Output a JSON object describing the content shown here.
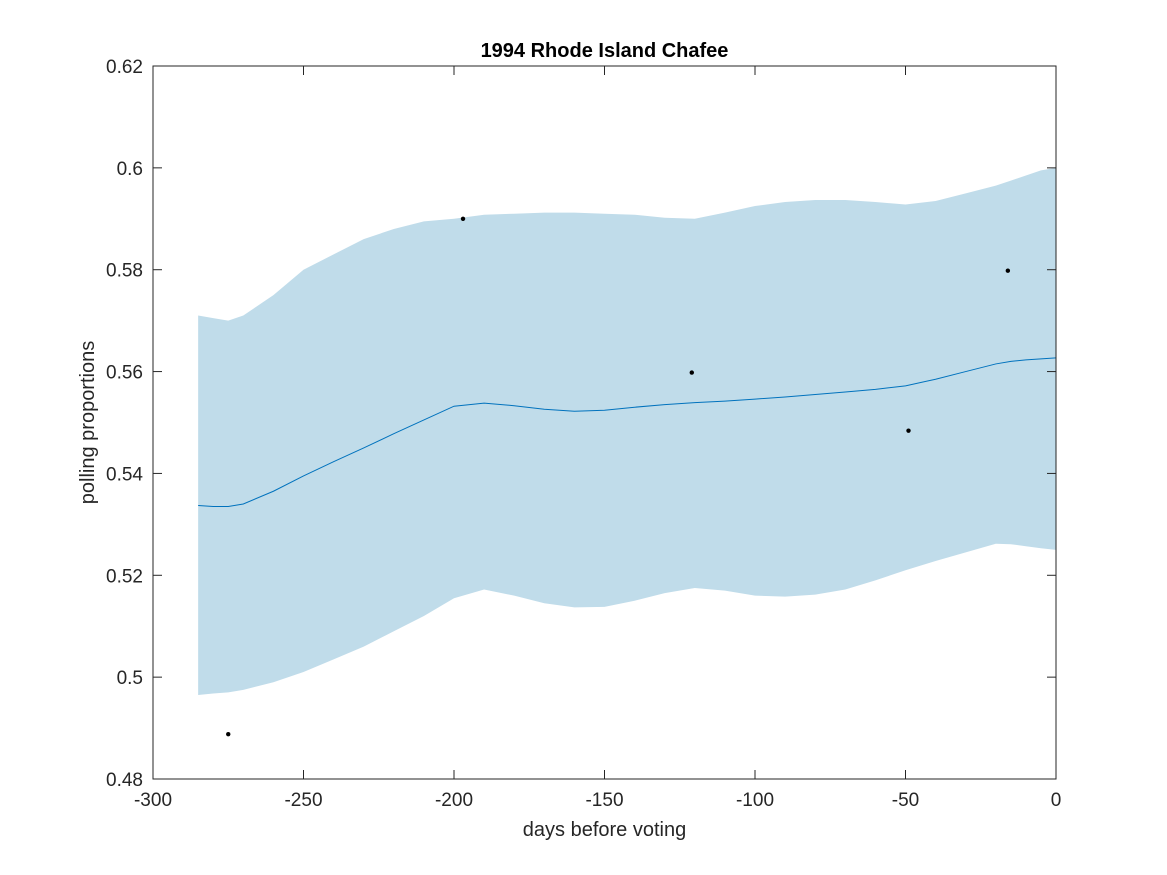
{
  "chart_data": {
    "type": "line",
    "title": "1994 Rhode Island Chafee",
    "xlabel": "days before voting",
    "ylabel": "polling proportions",
    "xlim": [
      -300,
      0
    ],
    "ylim": [
      0.48,
      0.62
    ],
    "xticks": [
      -300,
      -250,
      -200,
      -150,
      -100,
      -50,
      0
    ],
    "xtick_labels": [
      "-300",
      "-250",
      "-200",
      "-150",
      "-100",
      "-50",
      "0"
    ],
    "yticks": [
      0.48,
      0.5,
      0.52,
      0.54,
      0.56,
      0.58,
      0.6,
      0.62
    ],
    "ytick_labels": [
      "0.48",
      "0.5",
      "0.52",
      "0.54",
      "0.56",
      "0.58",
      "0.6",
      "0.62"
    ],
    "grid": false,
    "series": [
      {
        "kind": "band",
        "color": "#c0dcea",
        "x": [
          -285,
          -280,
          -275,
          -270,
          -260,
          -250,
          -240,
          -230,
          -220,
          -210,
          -200,
          -190,
          -180,
          -170,
          -160,
          -150,
          -140,
          -130,
          -120,
          -110,
          -100,
          -90,
          -80,
          -70,
          -60,
          -50,
          -40,
          -30,
          -20,
          -15,
          -10,
          -5,
          0
        ],
        "upper": [
          0.571,
          0.5705,
          0.57,
          0.571,
          0.575,
          0.58,
          0.583,
          0.586,
          0.588,
          0.5895,
          0.59,
          0.5908,
          0.591,
          0.5912,
          0.5912,
          0.591,
          0.5908,
          0.5902,
          0.59,
          0.5912,
          0.5925,
          0.5933,
          0.5937,
          0.5937,
          0.5933,
          0.5928,
          0.5935,
          0.595,
          0.5965,
          0.5975,
          0.5985,
          0.5995,
          0.6
        ],
        "lower": [
          0.4965,
          0.4968,
          0.497,
          0.4975,
          0.499,
          0.501,
          0.5035,
          0.506,
          0.509,
          0.512,
          0.5155,
          0.5172,
          0.516,
          0.5145,
          0.5137,
          0.5138,
          0.515,
          0.5165,
          0.5175,
          0.517,
          0.516,
          0.5158,
          0.5162,
          0.5172,
          0.519,
          0.521,
          0.5228,
          0.5245,
          0.5262,
          0.5261,
          0.5257,
          0.5253,
          0.525
        ]
      },
      {
        "kind": "line",
        "color": "#0072bd",
        "x": [
          -285,
          -280,
          -275,
          -270,
          -260,
          -250,
          -240,
          -230,
          -220,
          -210,
          -200,
          -190,
          -180,
          -170,
          -160,
          -150,
          -140,
          -130,
          -120,
          -110,
          -100,
          -90,
          -80,
          -70,
          -60,
          -50,
          -40,
          -30,
          -20,
          -15,
          -10,
          -5,
          0
        ],
        "y": [
          0.5337,
          0.5335,
          0.5335,
          0.534,
          0.5365,
          0.5395,
          0.5423,
          0.545,
          0.5478,
          0.5505,
          0.5532,
          0.5538,
          0.5533,
          0.5526,
          0.5522,
          0.5524,
          0.553,
          0.5535,
          0.5539,
          0.5542,
          0.5546,
          0.555,
          0.5555,
          0.556,
          0.5565,
          0.5572,
          0.5585,
          0.56,
          0.5615,
          0.562,
          0.5623,
          0.5625,
          0.5627
        ]
      },
      {
        "kind": "scatter",
        "color": "#000000",
        "x": [
          -275,
          -197,
          -121,
          -49,
          -16
        ],
        "y": [
          0.4888,
          0.59,
          0.5598,
          0.5484,
          0.5798
        ]
      }
    ]
  }
}
